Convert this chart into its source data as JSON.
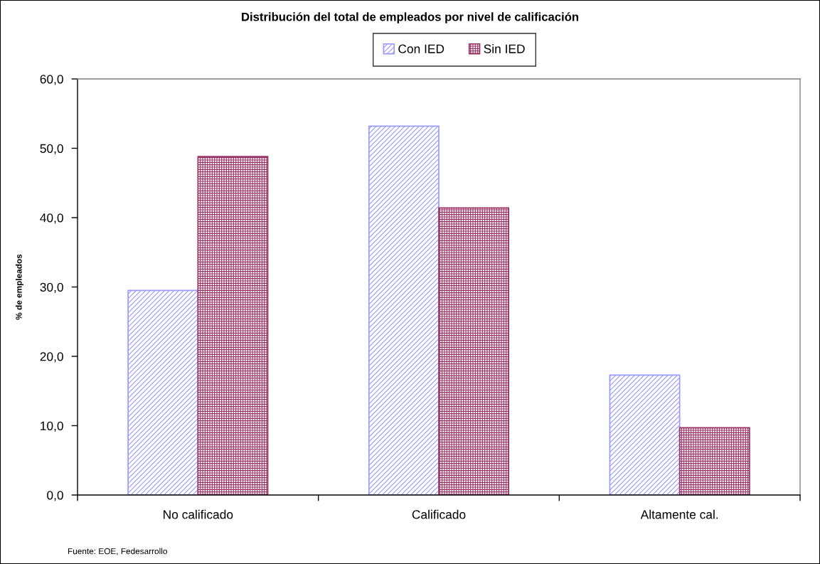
{
  "chart_data": {
    "type": "bar",
    "title": "Distribución del total de empleados por nivel de calificación",
    "ylabel": "% de empleados",
    "categories": [
      "No calificado",
      "Calificado",
      "Altamente cal."
    ],
    "series": [
      {
        "name": "Con IED",
        "color": "#9999ff",
        "values": [
          29.5,
          53.2,
          17.3
        ]
      },
      {
        "name": "Sin IED",
        "color": "#993366",
        "values": [
          48.8,
          41.4,
          9.7
        ]
      }
    ],
    "ylim": [
      0,
      60
    ],
    "yticks": [
      {
        "value": 0,
        "label": "0,0"
      },
      {
        "value": 10,
        "label": "10,0"
      },
      {
        "value": 20,
        "label": "20,0"
      },
      {
        "value": 30,
        "label": "30,0"
      },
      {
        "value": 40,
        "label": "40,0"
      },
      {
        "value": 50,
        "label": "50,0"
      },
      {
        "value": 60,
        "label": "60,0"
      }
    ],
    "legend": "top",
    "annotations": [
      "Fuente: EOE, Fedesarrollo"
    ]
  }
}
